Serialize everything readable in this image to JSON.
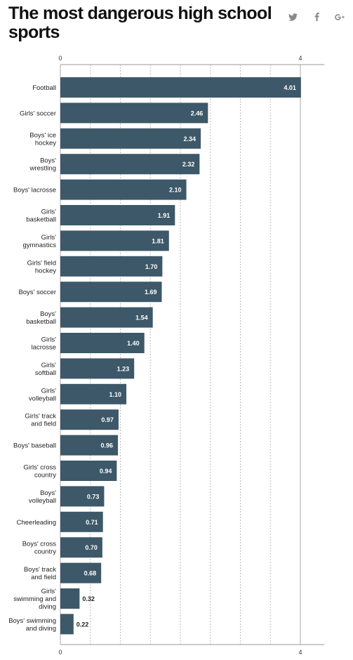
{
  "title": "The most dangerous high school sports",
  "share": [
    {
      "name": "twitter-icon"
    },
    {
      "name": "facebook-icon"
    },
    {
      "name": "google-plus-icon"
    }
  ],
  "colors": {
    "bar": "#3d5868",
    "label_inside": "#ffffff",
    "label_outside": "#222222",
    "grid": "#bbbbbb"
  },
  "chart_data": {
    "type": "bar",
    "orientation": "horizontal",
    "categories": [
      "Football",
      "Girls' soccer",
      "Boys' ice hockey",
      "Boys' wrestling",
      "Boys' lacrosse",
      "Girls' basketball",
      "Girls' gymnastics",
      "Girls' field hockey",
      "Boys' soccer",
      "Boys' basketball",
      "Girls' lacrosse",
      "Girls' softball",
      "Girls' volleyball",
      "Girls' track and field",
      "Boys' baseball",
      "Girls' cross country",
      "Boys' volleyball",
      "Cheerleading",
      "Boys' cross country",
      "Boys' track and field",
      "Girls' swimming and diving",
      "Boys' swimming and diving"
    ],
    "category_lines": [
      [
        "Football"
      ],
      [
        "Girls' soccer"
      ],
      [
        "Boys' ice",
        "hockey"
      ],
      [
        "Boys'",
        "wrestling"
      ],
      [
        "Boys' lacrosse"
      ],
      [
        "Girls'",
        "basketball"
      ],
      [
        "Girls'",
        "gymnastics"
      ],
      [
        "Girls' field",
        "hockey"
      ],
      [
        "Boys' soccer"
      ],
      [
        "Boys'",
        "basketball"
      ],
      [
        "Girls'",
        "lacrosse"
      ],
      [
        "Girls'",
        "softball"
      ],
      [
        "Girls'",
        "volleyball"
      ],
      [
        "Girls' track",
        "and field"
      ],
      [
        "Boys' baseball"
      ],
      [
        "Girls' cross",
        "country"
      ],
      [
        "Boys'",
        "volleyball"
      ],
      [
        "Cheerleading"
      ],
      [
        "Boys' cross",
        "country"
      ],
      [
        "Boys' track",
        "and field"
      ],
      [
        "Girls'",
        "swimming and",
        "diving"
      ],
      [
        "Boys' swimming",
        "and diving"
      ]
    ],
    "values": [
      4.01,
      2.46,
      2.34,
      2.32,
      2.1,
      1.91,
      1.81,
      1.7,
      1.69,
      1.54,
      1.4,
      1.23,
      1.1,
      0.97,
      0.96,
      0.94,
      0.73,
      0.71,
      0.7,
      0.68,
      0.32,
      0.22
    ],
    "value_labels": [
      "4.01",
      "2.46",
      "2.34",
      "2.32",
      "2.10",
      "1.91",
      "1.81",
      "1.70",
      "1.69",
      "1.54",
      "1.40",
      "1.23",
      "1.10",
      "0.97",
      "0.96",
      "0.94",
      "0.73",
      "0.71",
      "0.70",
      "0.68",
      "0.32",
      "0.22"
    ],
    "xlim": [
      0,
      4.4
    ],
    "ticks": [
      0,
      4
    ],
    "tick_labels": [
      "0",
      "4"
    ],
    "grid": true,
    "xlabel": "",
    "ylabel": ""
  }
}
